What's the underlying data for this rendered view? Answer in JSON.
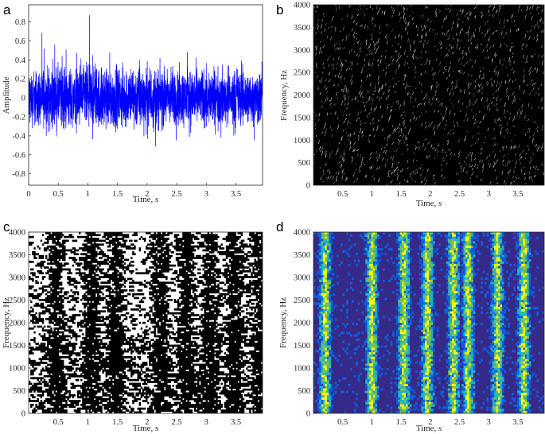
{
  "figure": {
    "panels": [
      "a",
      "b",
      "c",
      "d"
    ]
  },
  "colors": {
    "waveform": "#0000ff",
    "spectrogram_bg": "#000000",
    "spectrogram_line": "#d0d0d0",
    "binary_white": "#ffffff",
    "binary_black": "#000000",
    "parula_low": "#352a87",
    "parula_mid": "#0f5cdd",
    "parula_cyan": "#22b3c4",
    "parula_green": "#7dc34f",
    "parula_high": "#f9fb0e"
  },
  "chart_data": [
    {
      "panel": "a",
      "type": "line",
      "xlabel": "Time, s",
      "ylabel": "Amplitude",
      "xlim": [
        0,
        3.95
      ],
      "ylim": [
        -0.92,
        0.98
      ],
      "xticks": [
        0,
        0.5,
        1,
        1.5,
        2,
        2.5,
        3,
        3.5
      ],
      "xtick_labels": [
        "0",
        "0.5",
        "1",
        "1.5",
        "2",
        "2.5",
        "3",
        "3.5"
      ],
      "yticks": [
        -0.8,
        -0.6,
        -0.4,
        -0.2,
        0,
        0.2,
        0.4,
        0.6,
        0.8
      ],
      "ytick_labels": [
        "-0.8",
        "-0.6",
        "-0.4",
        "-0.2",
        "0",
        "0.2",
        "0.4",
        "0.6",
        "0.8"
      ],
      "envelope": {
        "t": [
          0,
          0.25,
          0.5,
          0.75,
          1.0,
          1.25,
          1.5,
          1.75,
          2.0,
          2.25,
          2.5,
          2.75,
          3.0,
          3.25,
          3.5,
          3.75,
          3.95
        ],
        "peak": [
          0.55,
          0.7,
          0.9,
          0.75,
          0.97,
          0.8,
          0.7,
          0.85,
          0.9,
          0.75,
          0.7,
          0.75,
          0.7,
          0.6,
          0.7,
          0.6,
          0.5
        ]
      },
      "grid": false
    },
    {
      "panel": "b",
      "type": "heatmap",
      "xlabel": "Time, s",
      "ylabel": "Frequency, Hz",
      "xlim": [
        0,
        3.95
      ],
      "ylim": [
        0,
        4000
      ],
      "xticks": [
        0.5,
        1,
        1.5,
        2,
        2.5,
        3,
        3.5
      ],
      "xtick_labels": [
        "0.5",
        "1",
        "1.5",
        "2",
        "2.5",
        "3",
        "3.5"
      ],
      "yticks": [
        0,
        500,
        1000,
        1500,
        2000,
        2500,
        3000,
        3500,
        4000
      ],
      "ytick_labels": [
        "0",
        "500",
        "1000",
        "1500",
        "2000",
        "2500",
        "3000",
        "3500",
        "4000"
      ],
      "style": "sparse light ridge lines on black"
    },
    {
      "panel": "c",
      "type": "heatmap",
      "xlabel": "Time, s",
      "ylabel": "Frequency, Hz",
      "xlim": [
        0,
        3.95
      ],
      "ylim": [
        0,
        4000
      ],
      "xticks": [
        0.5,
        1,
        1.5,
        2,
        2.5,
        3,
        3.5
      ],
      "xtick_labels": [
        "0.5",
        "1",
        "1.5",
        "2",
        "2.5",
        "3",
        "3.5"
      ],
      "yticks": [
        0,
        500,
        1000,
        1500,
        2000,
        2500,
        3000,
        3500,
        4000
      ],
      "ytick_labels": [
        "0",
        "500",
        "1000",
        "1500",
        "2000",
        "2500",
        "3000",
        "3500",
        "4000"
      ],
      "style": "binary black and white mask",
      "dark_bands_s": [
        0.45,
        1.05,
        1.45,
        2.2,
        2.65,
        3.05,
        3.45,
        3.9
      ]
    },
    {
      "panel": "d",
      "type": "heatmap",
      "xlabel": "Time, s",
      "ylabel": "Frequency, Hz",
      "xlim": [
        0,
        3.95
      ],
      "ylim": [
        0,
        4000
      ],
      "xticks": [
        0.5,
        1,
        1.5,
        2,
        2.5,
        3,
        3.5
      ],
      "xtick_labels": [
        "0.5",
        "1",
        "1.5",
        "2",
        "2.5",
        "3",
        "3.5"
      ],
      "yticks": [
        0,
        500,
        1000,
        1500,
        2000,
        2500,
        3000,
        3500,
        4000
      ],
      "ytick_labels": [
        "0",
        "500",
        "1000",
        "1500",
        "2000",
        "2500",
        "3000",
        "3500",
        "4000"
      ],
      "style": "parula colormap spectrogram",
      "bright_bands_s": [
        0.2,
        1.0,
        1.55,
        1.95,
        2.4,
        2.65,
        3.15,
        3.6
      ]
    }
  ]
}
